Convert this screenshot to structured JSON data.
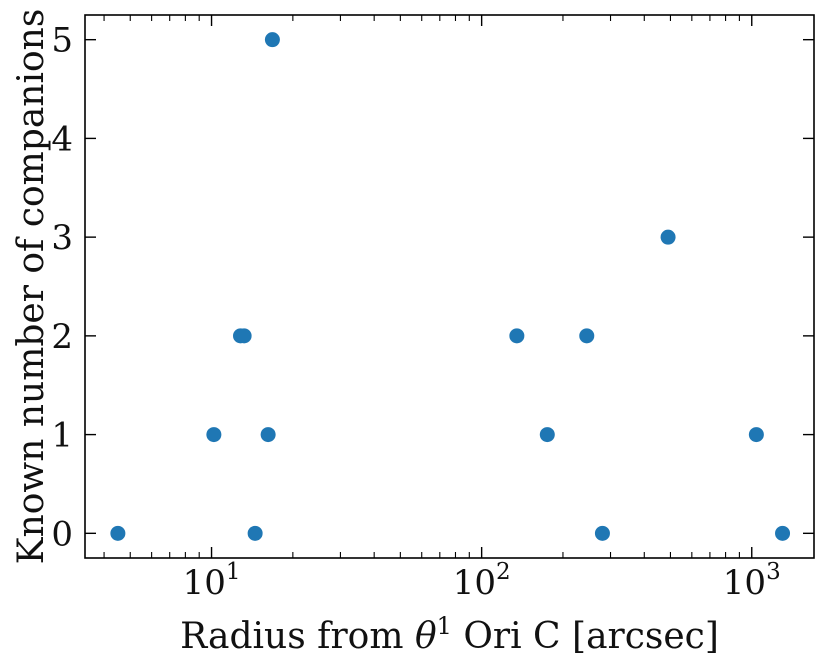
{
  "chart_data": {
    "type": "scatter",
    "title": "",
    "xlabel": "Radius from θ¹ Ori C [arcsec]",
    "xlabel_parts": {
      "before": "Radius from ",
      "symbol": "θ",
      "superscript": "1",
      "after": " Ori C [arcsec]"
    },
    "ylabel": "Known number of companions",
    "xscale": "log",
    "xlim": [
      3.4,
      1700
    ],
    "ylim": [
      -0.25,
      5.25
    ],
    "x_ticks": [
      {
        "value": 10,
        "base": "10",
        "exp": "1"
      },
      {
        "value": 100,
        "base": "10",
        "exp": "2"
      },
      {
        "value": 1000,
        "base": "10",
        "exp": "3"
      }
    ],
    "y_ticks": [
      0,
      1,
      2,
      3,
      4,
      5
    ],
    "y_tick_labels": [
      "0",
      "1",
      "2",
      "3",
      "4",
      "5"
    ],
    "tick_direction": "in",
    "ticks_on_all_sides": true,
    "grid": false,
    "legend": "none",
    "marker_color": "#1f77b4",
    "series": [
      {
        "x": [
          4.5,
          10.2,
          12.8,
          13.2,
          14.5,
          16.2,
          16.8,
          135,
          175,
          245,
          280,
          490,
          1040,
          1300
        ],
        "y": [
          0,
          1,
          2,
          2,
          0,
          1,
          5,
          2,
          1,
          2,
          0,
          3,
          1,
          0
        ]
      }
    ]
  }
}
